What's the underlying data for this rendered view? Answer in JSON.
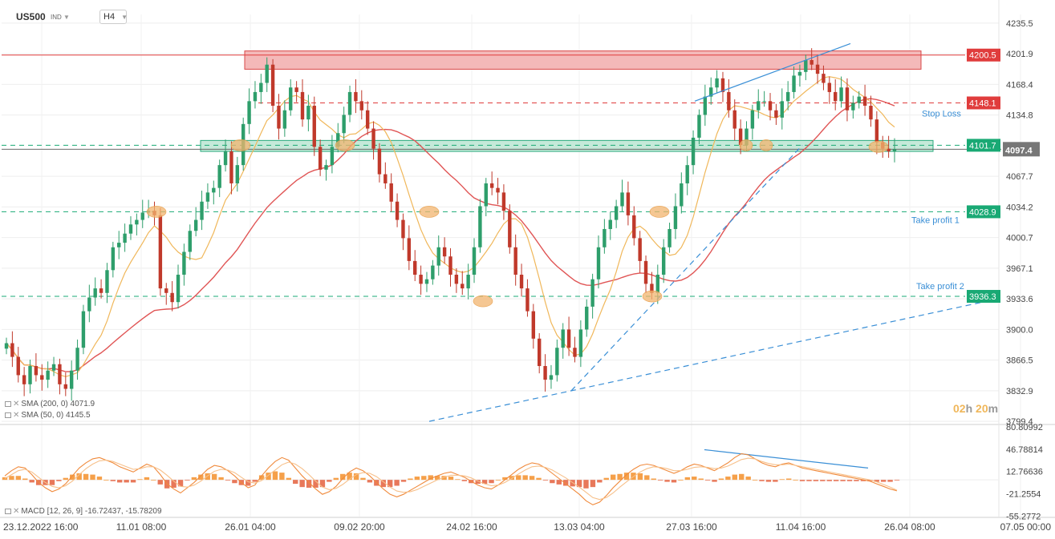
{
  "header": {
    "symbol": "US500",
    "instrument_type": "IND",
    "timeframe": "H4"
  },
  "legends": {
    "sma200": "SMA (200, 0) 4071.9",
    "sma50": "SMA (50, 0) 4145.5",
    "macd": "MACD [12, 26, 9] -16.72437, -15.78209"
  },
  "countdown": {
    "hours": "02",
    "h_unit": "h",
    "minutes": "20",
    "m_unit": "m"
  },
  "colors": {
    "up": "#2e9e6b",
    "down": "#c0392b",
    "sma50": "#f0b75a",
    "sma200": "#e05555",
    "trend": "#3a8fd6",
    "zone_red": "#f4b9b9",
    "zone_green": "#b7e4cf",
    "macd_pos": "#f5a04a",
    "macd_neg": "#e8785a"
  },
  "chart_data": {
    "type": "candlestick",
    "timeframe": "H4",
    "x_ticks": [
      "23.12.2022 16:00",
      "11.01 08:00",
      "26.01 04:00",
      "09.02 20:00",
      "24.02 16:00",
      "13.03 04:00",
      "27.03 16:00",
      "11.04 16:00",
      "26.04 08:00",
      "07.05 00:00"
    ],
    "y_ticks": [
      "4235.5",
      "4201.9",
      "4168.4",
      "4134.8",
      "4067.7",
      "4034.2",
      "4000.7",
      "3967.1",
      "3933.6",
      "3900.0",
      "3866.5",
      "3832.9",
      "3799.4"
    ],
    "ylim": [
      3796,
      4245
    ],
    "current_price": "4097.4",
    "price_series": [
      3885,
      3870,
      3850,
      3840,
      3860,
      3850,
      3845,
      3855,
      3862,
      3840,
      3835,
      3855,
      3880,
      3920,
      3935,
      3945,
      3940,
      3965,
      3990,
      3995,
      4005,
      4015,
      4020,
      4028,
      4030,
      4025,
      3945,
      3940,
      3930,
      3960,
      3985,
      4008,
      4020,
      4040,
      4050,
      4055,
      4080,
      4095,
      4060,
      4080,
      4125,
      4150,
      4160,
      4170,
      4190,
      4145,
      4120,
      4140,
      4165,
      4160,
      4130,
      4145,
      4100,
      4075,
      4080,
      4100,
      4115,
      4135,
      4160,
      4150,
      4140,
      4120,
      4098,
      4070,
      4060,
      4040,
      4020,
      4000,
      3975,
      3960,
      3950,
      3955,
      3970,
      3990,
      3980,
      3960,
      3950,
      3945,
      3960,
      3990,
      4035,
      4060,
      4055,
      4050,
      4030,
      3990,
      3960,
      3945,
      3920,
      3890,
      3860,
      3845,
      3850,
      3880,
      3900,
      3880,
      3870,
      3900,
      3925,
      3955,
      3990,
      4010,
      4020,
      4035,
      4050,
      4025,
      4000,
      3975,
      3950,
      3940,
      3960,
      3990,
      4010,
      4035,
      4060,
      4080,
      4110,
      4135,
      4155,
      4165,
      4175,
      4160,
      4140,
      4120,
      4102,
      4120,
      4140,
      4150,
      4150,
      4140,
      4132,
      4150,
      4160,
      4178,
      4182,
      4195,
      4190,
      4180,
      4170,
      4160,
      4150,
      4165,
      4140,
      4148,
      4155,
      4145,
      4130,
      4105,
      4098,
      4095,
      4097.4
    ],
    "indicators": [
      {
        "name": "SMA (200, 0)",
        "value": "4071.9"
      },
      {
        "name": "SMA (50, 0)",
        "value": "4145.5"
      }
    ],
    "price_levels": [
      {
        "label": "4200.5",
        "value": 4200.5,
        "color": "#e03c3c",
        "style": "solid"
      },
      {
        "label": "4148.1",
        "value": 4148.1,
        "color": "#e03c3c",
        "style": "dashed",
        "name": "Stop Loss"
      },
      {
        "label": "4101.7",
        "value": 4101.7,
        "color": "#19a974",
        "style": "dashed"
      },
      {
        "label": "4028.9",
        "value": 4028.9,
        "color": "#19a974",
        "style": "dashed",
        "name": "Take profit 1"
      },
      {
        "label": "3936.3",
        "value": 3936.3,
        "color": "#19a974",
        "style": "dashed",
        "name": "Take profit 2"
      }
    ],
    "zones": [
      {
        "kind": "resistance",
        "from": 4185,
        "to": 4205
      },
      {
        "kind": "support",
        "from": 4095,
        "to": 4107
      }
    ],
    "macd": {
      "params": "[12, 26, 9]",
      "macd_value": "-16.72437",
      "signal_value": "-15.78209",
      "y_ticks": [
        "80.80992",
        "46.78814",
        "12.76636",
        "-21.2554",
        "-55.2772"
      ],
      "ylim": [
        -56,
        82
      ],
      "macd_line": [
        6,
        14,
        20,
        18,
        8,
        -4,
        -12,
        -18,
        -14,
        -6,
        6,
        18,
        26,
        32,
        34,
        30,
        26,
        20,
        16,
        12,
        18,
        24,
        20,
        8,
        -6,
        -14,
        -20,
        -12,
        -4,
        6,
        16,
        22,
        20,
        14,
        6,
        -4,
        -12,
        -8,
        6,
        18,
        28,
        34,
        30,
        18,
        6,
        -4,
        -14,
        -22,
        -18,
        -10,
        2,
        12,
        18,
        14,
        6,
        -4,
        -14,
        -22,
        -26,
        -22,
        -16,
        -10,
        -4,
        2,
        6,
        10,
        12,
        8,
        4,
        -2,
        -8,
        -12,
        -14,
        -8,
        0,
        8,
        16,
        22,
        26,
        24,
        18,
        10,
        2,
        -6,
        -14,
        -22,
        -32,
        -38,
        -34,
        -24,
        -12,
        -2,
        8,
        16,
        22,
        24,
        22,
        18,
        14,
        10,
        14,
        20,
        24,
        22,
        18,
        14,
        20,
        26,
        34,
        40,
        38,
        32,
        26,
        22,
        20,
        24,
        26,
        22,
        18,
        16,
        14,
        12,
        10,
        8,
        6,
        4,
        2,
        0,
        -2,
        -6,
        -10,
        -14,
        -16.7
      ],
      "signal_line": [
        2,
        8,
        14,
        16,
        12,
        4,
        -4,
        -10,
        -12,
        -9,
        -2,
        8,
        17,
        24,
        29,
        30,
        28,
        24,
        20,
        16,
        17,
        20,
        20,
        15,
        7,
        -2,
        -10,
        -11,
        -8,
        -2,
        6,
        13,
        16,
        15,
        11,
        4,
        -3,
        -5,
        -1,
        7,
        15,
        23,
        27,
        24,
        17,
        8,
        -2,
        -11,
        -15,
        -13,
        -7,
        1,
        8,
        11,
        10,
        5,
        -3,
        -11,
        -17,
        -19,
        -18,
        -15,
        -10,
        -5,
        0,
        4,
        7,
        7,
        6,
        3,
        -2,
        -6,
        -9,
        -8,
        -4,
        2,
        9,
        15,
        20,
        21,
        19,
        15,
        9,
        3,
        -4,
        -11,
        -19,
        -27,
        -30,
        -27,
        -20,
        -11,
        -3,
        5,
        12,
        17,
        20,
        19,
        17,
        14,
        14,
        16,
        19,
        20,
        19,
        17,
        18,
        21,
        26,
        31,
        33,
        32,
        28,
        25,
        23,
        23,
        24,
        22,
        20,
        18,
        16,
        14,
        12,
        10,
        8,
        6,
        4,
        2,
        0,
        -3,
        -7,
        -11,
        -15.8
      ]
    }
  }
}
